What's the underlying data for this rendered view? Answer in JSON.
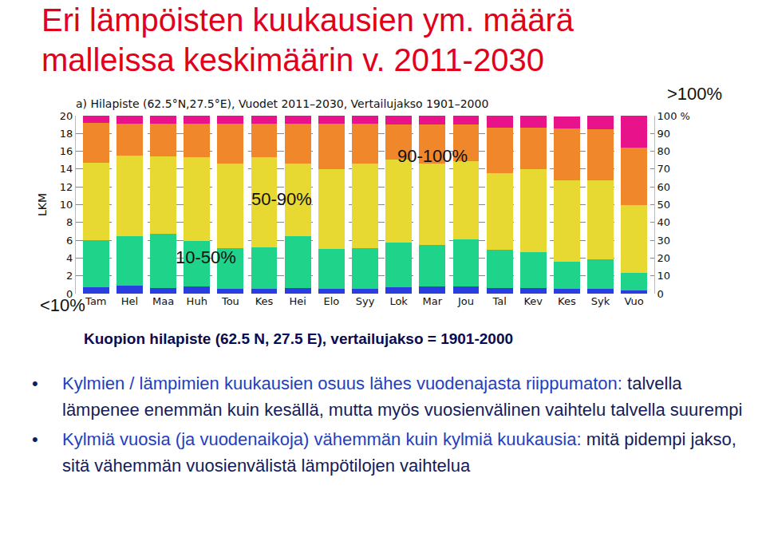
{
  "slide_title": [
    "Eri lämpöisten kuukausien ym. määrä",
    "malleissa keskimäärin v. 2011-2030"
  ],
  "chart_data": {
    "type": "bar",
    "stacked": true,
    "title": "a) Hilapiste (62.5°N,27.5°E), Vuodet 2011–2030, Vertailujakso 1901–2000",
    "y_label": "LKM",
    "categories": [
      "Tam",
      "Hel",
      "Maa",
      "Huh",
      "Tou",
      "Kes",
      "Hei",
      "Elo",
      "Syy",
      "Lok",
      "Mar",
      "Jou",
      "Tal",
      "Kev",
      "Kes",
      "Syk",
      "Vuo"
    ],
    "series": [
      {
        "name": "<10%",
        "color": "#2a3ee0",
        "values": [
          0.7,
          0.9,
          0.6,
          0.8,
          0.5,
          0.5,
          0.6,
          0.5,
          0.5,
          0.7,
          0.8,
          0.8,
          0.6,
          0.6,
          0.5,
          0.5,
          0.4
        ]
      },
      {
        "name": "10-50%",
        "color": "#1fd38a",
        "values": [
          5.3,
          5.6,
          6.1,
          5.1,
          4.6,
          4.7,
          5.9,
          4.5,
          4.6,
          5.0,
          4.7,
          5.3,
          4.3,
          4.1,
          3.1,
          3.4,
          1.9
        ]
      },
      {
        "name": "50-90%",
        "color": "#e8d832",
        "values": [
          8.7,
          9.0,
          8.7,
          9.4,
          9.5,
          10.1,
          8.1,
          9.0,
          9.5,
          9.4,
          9.1,
          8.8,
          8.6,
          9.3,
          9.1,
          8.8,
          7.7
        ]
      },
      {
        "name": "90-100%",
        "color": "#f0872a",
        "values": [
          4.5,
          3.6,
          3.7,
          3.8,
          4.5,
          3.8,
          4.5,
          5.1,
          4.5,
          3.9,
          4.4,
          4.1,
          5.2,
          4.7,
          5.9,
          5.8,
          6.4
        ]
      },
      {
        "name": ">100%",
        "color": "#e8128a",
        "values": [
          0.8,
          0.9,
          0.9,
          0.9,
          0.9,
          0.9,
          0.9,
          0.9,
          0.9,
          1.0,
          1.0,
          1.0,
          1.3,
          1.3,
          1.3,
          1.5,
          3.6
        ]
      }
    ],
    "ylim": [
      0,
      20
    ],
    "yticks": [
      0,
      2,
      4,
      6,
      8,
      10,
      12,
      14,
      16,
      18,
      20
    ],
    "y2lim": [
      0,
      100
    ],
    "y2ticks": [
      0,
      10,
      20,
      30,
      40,
      50,
      60,
      70,
      80,
      90,
      {
        "value": 100,
        "label": "100 %"
      }
    ],
    "grid": true
  },
  "caption": "Kuopion hilapiste (62.5 N, 27.5 E), vertailujakso = 1901-2000",
  "bullets": [
    [
      "Kylmien / lämpimien kuukausien osuus lähes vuodenajasta riippumaton:",
      " talvella lämpenee enemmän kuin kesällä, mutta myös vuosienvälinen vaihtelu talvella suurempi"
    ],
    [
      "Kylmiä vuosia (ja vuodenaikoja) vähemmän kuin kylmiä kuukausia:",
      " mitä pidempi jakso, sitä vähemmän vuosienvälistä lämpötilojen vaihtelua"
    ]
  ]
}
